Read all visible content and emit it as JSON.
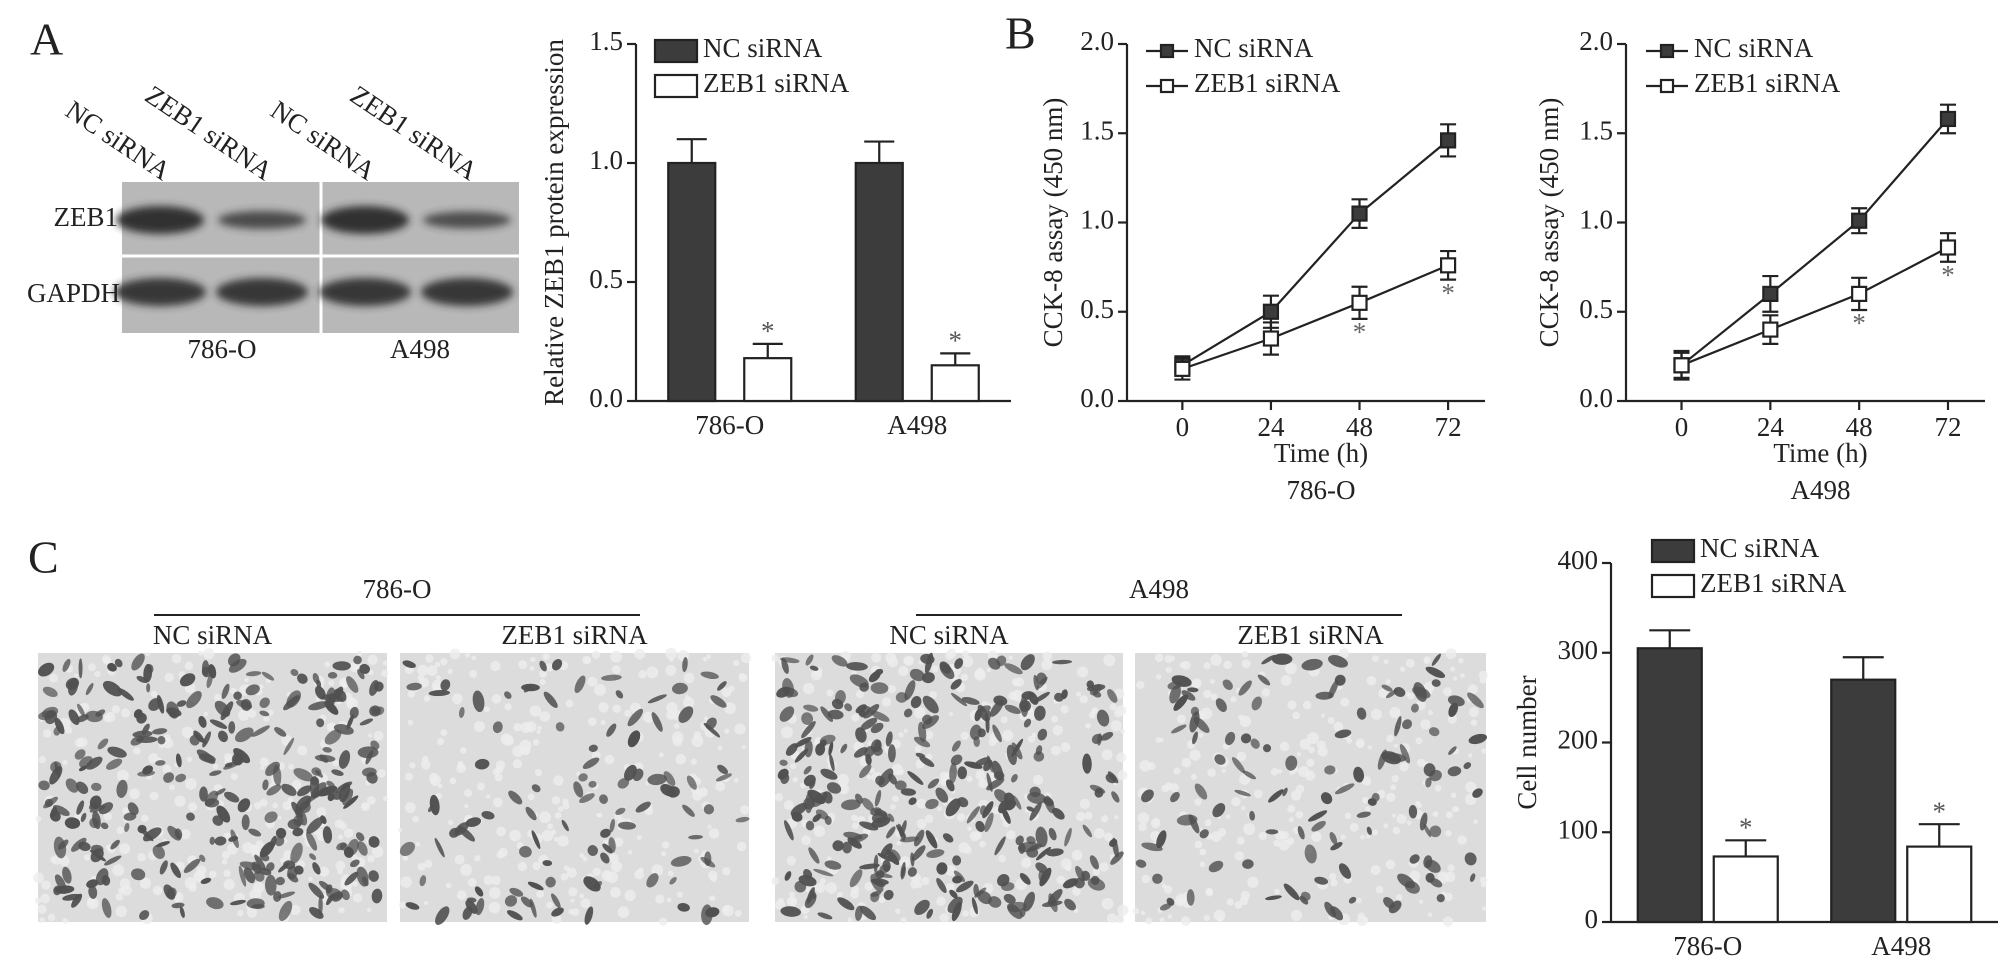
{
  "figure": {
    "panel_labels": [
      "A",
      "B",
      "C"
    ],
    "blot": {
      "lanes": [
        "NC siRNA",
        "ZEB1 siRNA",
        "NC siRNA",
        "ZEB1 siRNA"
      ],
      "rows": [
        "ZEB1",
        "GAPDH"
      ],
      "groups": [
        "786-O",
        "A498"
      ]
    },
    "migration": {
      "groups": [
        "786-O",
        "A498"
      ],
      "conditions": [
        "NC siRNA",
        "ZEB1 siRNA",
        "NC siRNA",
        "ZEB1 siRNA"
      ]
    }
  },
  "chart_data": [
    {
      "type": "bar",
      "ylabel": "Relative ZEB1 protein expression",
      "categories": [
        "786-O",
        "A498"
      ],
      "series": [
        {
          "name": "NC siRNA",
          "color": "#3c3c3c",
          "values": [
            1.0,
            1.0
          ],
          "errors": [
            0.1,
            0.09
          ]
        },
        {
          "name": "ZEB1 siRNA",
          "color": "#ffffff",
          "values": [
            0.18,
            0.15
          ],
          "errors": [
            0.06,
            0.05
          ],
          "annotations": [
            "*",
            "*"
          ]
        }
      ],
      "ylim": [
        0,
        1.5
      ],
      "yticks": [
        {
          "value": 0,
          "label": "0.0"
        },
        {
          "value": 0.5,
          "label": "0.5"
        },
        {
          "value": 1,
          "label": "1.0"
        },
        {
          "value": 1.5,
          "label": "1.5"
        }
      ],
      "legend": "upper left"
    },
    {
      "type": "line",
      "ylabel": "CCK-8 assay (450 nm)",
      "xlabel": "Time (h)",
      "subtitle": "786-O",
      "x": [
        0,
        24,
        48,
        72
      ],
      "series": [
        {
          "name": "NC siRNA",
          "color": "#3c3c3c",
          "values": [
            0.2,
            0.5,
            1.05,
            1.46
          ],
          "errors": [
            0.05,
            0.09,
            0.08,
            0.09
          ]
        },
        {
          "name": "ZEB1 siRNA",
          "color": "#ffffff",
          "values": [
            0.18,
            0.35,
            0.55,
            0.76
          ],
          "errors": [
            0.06,
            0.09,
            0.09,
            0.08
          ],
          "annotations": [
            null,
            null,
            "*",
            "*"
          ]
        }
      ],
      "xlim": [
        -15,
        82
      ],
      "xticks": [
        0,
        24,
        48,
        72
      ],
      "ylim": [
        0,
        2
      ],
      "yticks": [
        {
          "value": 0,
          "label": "0.0"
        },
        {
          "value": 0.5,
          "label": "0.5"
        },
        {
          "value": 1,
          "label": "1.0"
        },
        {
          "value": 1.5,
          "label": "1.5"
        },
        {
          "value": 2,
          "label": "2.0"
        }
      ],
      "legend": "upper left"
    },
    {
      "type": "line",
      "ylabel": "CCK-8 assay (450 nm)",
      "xlabel": "Time (h)",
      "subtitle": "A498",
      "x": [
        0,
        24,
        48,
        72
      ],
      "series": [
        {
          "name": "NC siRNA",
          "color": "#3c3c3c",
          "values": [
            0.2,
            0.6,
            1.01,
            1.58
          ],
          "errors": [
            0.08,
            0.1,
            0.07,
            0.08
          ]
        },
        {
          "name": "ZEB1 siRNA",
          "color": "#ffffff",
          "values": [
            0.2,
            0.4,
            0.6,
            0.86
          ],
          "errors": [
            0.07,
            0.08,
            0.09,
            0.08
          ],
          "annotations": [
            null,
            null,
            "*",
            "*"
          ]
        }
      ],
      "xlim": [
        -15,
        82
      ],
      "xticks": [
        0,
        24,
        48,
        72
      ],
      "ylim": [
        0,
        2
      ],
      "yticks": [
        {
          "value": 0,
          "label": "0.0"
        },
        {
          "value": 0.5,
          "label": "0.5"
        },
        {
          "value": 1,
          "label": "1.0"
        },
        {
          "value": 1.5,
          "label": "1.5"
        },
        {
          "value": 2,
          "label": "2.0"
        }
      ],
      "legend": "upper left"
    },
    {
      "type": "bar",
      "ylabel": "Cell number",
      "categories": [
        "786-O",
        "A498"
      ],
      "series": [
        {
          "name": "NC siRNA",
          "color": "#3c3c3c",
          "values": [
            305,
            270
          ],
          "errors": [
            20,
            25
          ]
        },
        {
          "name": "ZEB1 siRNA",
          "color": "#ffffff",
          "values": [
            73,
            84
          ],
          "errors": [
            18,
            25
          ],
          "annotations": [
            "*",
            "*"
          ]
        }
      ],
      "ylim": [
        0,
        400
      ],
      "yticks": [
        0,
        100,
        200,
        300,
        400
      ],
      "legend": "upper left"
    }
  ]
}
